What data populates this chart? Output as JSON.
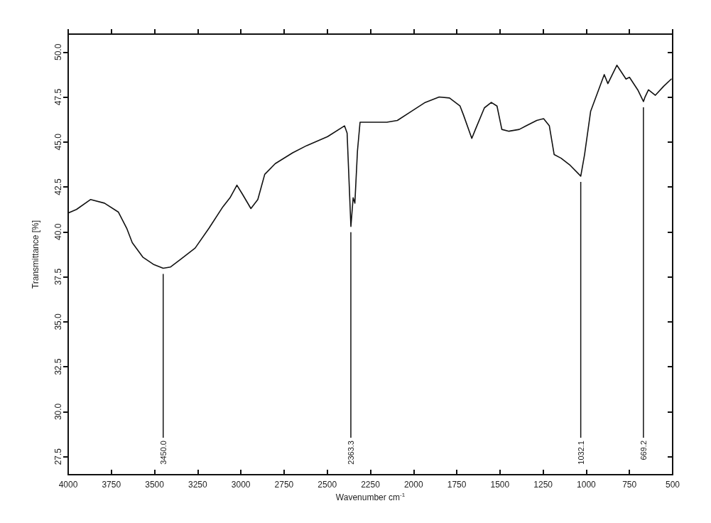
{
  "chart_data": {
    "type": "line",
    "xlabel": "Wavenumber cm$^{-1}$",
    "ylabel": "Transmittance [%]",
    "xlim": [
      4000,
      500
    ],
    "xticks": [
      4000,
      3750,
      3500,
      3250,
      3000,
      2750,
      2500,
      2250,
      2000,
      1750,
      1500,
      1250,
      1000,
      750,
      500
    ],
    "ylim": [
      26.5,
      51
    ],
    "yticks": [
      27.5,
      {
        "value": 30,
        "label": "30.0"
      },
      32.5,
      {
        "value": 35,
        "label": "35.0"
      },
      37.5,
      {
        "value": 40,
        "label": "40.0"
      },
      42.5,
      {
        "value": 45,
        "label": "45.0"
      },
      47.5,
      {
        "value": 50,
        "label": "50.0"
      }
    ],
    "marker": "none",
    "line_style": "solid",
    "series": [
      {
        "color": "#111111",
        "x": [
          4000,
          3952,
          3871,
          3790,
          3709,
          3661,
          3629,
          3568,
          3507,
          3450,
          3407,
          3346,
          3265,
          3185,
          3104,
          3063,
          3023,
          2991,
          2942,
          2902,
          2862,
          2801,
          2700,
          2619,
          2498,
          2400,
          2385,
          2363,
          2350,
          2340,
          2325,
          2310,
          2256,
          2155,
          2094,
          2014,
          1933,
          1852,
          1792,
          1731,
          1711,
          1663,
          1642,
          1590,
          1550,
          1517,
          1489,
          1448,
          1388,
          1348,
          1287,
          1247,
          1214,
          1186,
          1146,
          1093,
          1032,
          1010,
          975,
          896,
          875,
          823,
          770,
          750,
          702,
          669,
          660,
          640,
          600,
          552,
          508
        ],
        "values": [
          41.05,
          41.25,
          41.8,
          41.6,
          41.1,
          40.2,
          39.4,
          38.6,
          38.2,
          37.98,
          38.05,
          38.5,
          39.1,
          40.2,
          41.4,
          41.9,
          42.6,
          42.1,
          41.3,
          41.8,
          43.2,
          43.8,
          44.4,
          44.8,
          45.3,
          45.9,
          45.5,
          40.3,
          41.9,
          41.6,
          44.5,
          46.1,
          46.1,
          46.1,
          46.2,
          46.7,
          47.2,
          47.5,
          47.45,
          47.0,
          46.5,
          45.2,
          45.7,
          46.9,
          47.2,
          47.0,
          45.7,
          45.6,
          45.7,
          45.9,
          46.2,
          46.3,
          45.9,
          44.3,
          44.1,
          43.7,
          43.1,
          44.3,
          46.7,
          48.75,
          48.25,
          49.27,
          48.5,
          48.6,
          47.9,
          47.25,
          47.5,
          47.9,
          47.6,
          48.1,
          48.5
        ]
      }
    ],
    "annotations": [
      {
        "text": "3450.0",
        "x": 3450,
        "y": 37.98
      },
      {
        "text": "2363.3",
        "x": 2363.3,
        "y": 40.3
      },
      {
        "text": "1032.1",
        "x": 1032.1,
        "y": 43.1
      },
      {
        "text": "669.2",
        "x": 669.2,
        "y": 47.25
      }
    ]
  }
}
